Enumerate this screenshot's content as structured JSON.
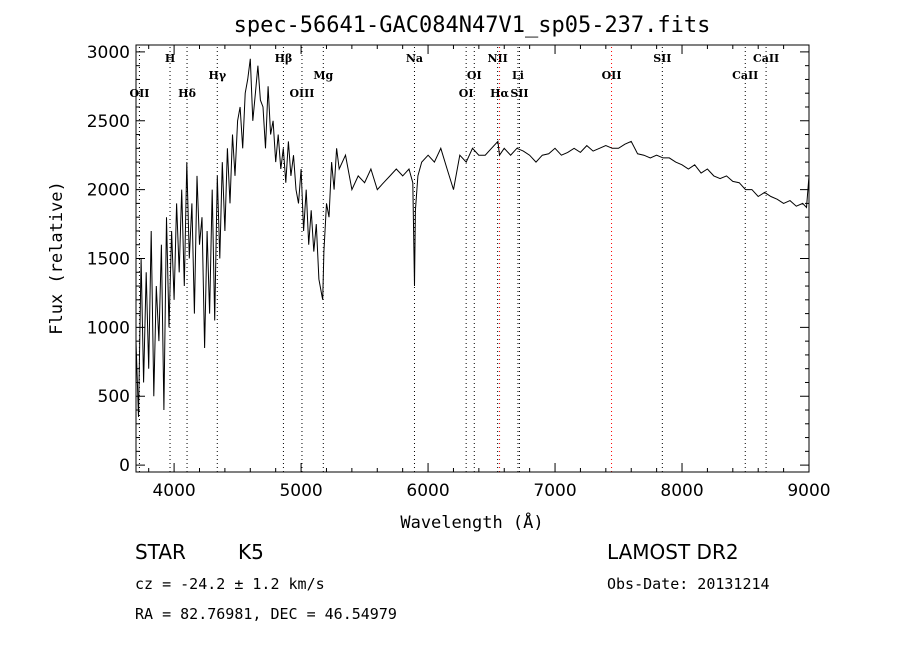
{
  "chart_data": {
    "type": "line",
    "title": "spec-56641-GAC084N47V1_sp05-237.fits",
    "xlabel": "Wavelength (Å)",
    "ylabel": "Flux (relative)",
    "xlim": [
      3700,
      9000
    ],
    "ylim": [
      -50,
      3050
    ],
    "xticks": [
      4000,
      5000,
      6000,
      7000,
      8000,
      9000
    ],
    "yticks": [
      0,
      500,
      1000,
      1500,
      2000,
      2500,
      3000
    ],
    "grid": false,
    "series": [
      {
        "x": [
          3700,
          3720,
          3740,
          3760,
          3780,
          3800,
          3820,
          3840,
          3860,
          3880,
          3900,
          3920,
          3940,
          3960,
          3980,
          4000,
          4020,
          4040,
          4060,
          4080,
          4100,
          4120,
          4140,
          4160,
          4180,
          4200,
          4220,
          4240,
          4260,
          4280,
          4300,
          4320,
          4340,
          4360,
          4380,
          4400,
          4420,
          4440,
          4460,
          4480,
          4500,
          4520,
          4540,
          4560,
          4580,
          4600,
          4620,
          4640,
          4660,
          4680,
          4700,
          4720,
          4740,
          4760,
          4780,
          4800,
          4820,
          4840,
          4860,
          4880,
          4900,
          4920,
          4940,
          4960,
          4980,
          5000,
          5020,
          5040,
          5060,
          5080,
          5100,
          5120,
          5140,
          5160,
          5170,
          5180,
          5200,
          5220,
          5240,
          5260,
          5280,
          5300,
          5350,
          5400,
          5450,
          5500,
          5550,
          5600,
          5650,
          5700,
          5750,
          5800,
          5850,
          5880,
          5893,
          5900,
          5920,
          5950,
          6000,
          6050,
          6100,
          6150,
          6200,
          6250,
          6300,
          6350,
          6400,
          6450,
          6500,
          6550,
          6563,
          6600,
          6650,
          6700,
          6750,
          6800,
          6850,
          6900,
          6950,
          7000,
          7050,
          7100,
          7150,
          7200,
          7250,
          7300,
          7350,
          7400,
          7450,
          7500,
          7550,
          7600,
          7650,
          7700,
          7750,
          7800,
          7850,
          7900,
          7950,
          8000,
          8050,
          8100,
          8150,
          8200,
          8250,
          8300,
          8350,
          8400,
          8450,
          8500,
          8550,
          8600,
          8650,
          8700,
          8750,
          8800,
          8850,
          8900,
          8950,
          8980,
          9000
        ],
        "y": [
          900,
          350,
          1500,
          600,
          1400,
          700,
          1700,
          500,
          1300,
          900,
          1600,
          400,
          1800,
          1000,
          1700,
          1200,
          1900,
          1400,
          2000,
          1300,
          2200,
          1500,
          1900,
          1100,
          2100,
          1600,
          1800,
          850,
          1700,
          1100,
          2000,
          1050,
          2100,
          1500,
          2200,
          1700,
          2300,
          1900,
          2400,
          2100,
          2500,
          2600,
          2300,
          2700,
          2800,
          2950,
          2500,
          2700,
          2900,
          2650,
          2600,
          2300,
          2750,
          2400,
          2500,
          2200,
          2400,
          2150,
          2300,
          2050,
          2350,
          2100,
          2250,
          2000,
          1900,
          2150,
          1700,
          2000,
          1600,
          1850,
          1550,
          1750,
          1350,
          1250,
          1200,
          1550,
          1900,
          1800,
          2200,
          2000,
          2300,
          2150,
          2250,
          2000,
          2100,
          2050,
          2150,
          2000,
          2050,
          2100,
          2150,
          2100,
          2150,
          2050,
          1300,
          1850,
          2100,
          2200,
          2250,
          2200,
          2300,
          2150,
          2000,
          2250,
          2200,
          2300,
          2250,
          2250,
          2300,
          2350,
          2250,
          2300,
          2250,
          2300,
          2280,
          2250,
          2200,
          2250,
          2260,
          2300,
          2250,
          2270,
          2300,
          2270,
          2320,
          2280,
          2300,
          2320,
          2300,
          2300,
          2330,
          2350,
          2260,
          2250,
          2230,
          2250,
          2230,
          2230,
          2200,
          2180,
          2150,
          2180,
          2120,
          2150,
          2100,
          2080,
          2100,
          2060,
          2050,
          2000,
          2000,
          1950,
          1980,
          1950,
          1930,
          1900,
          1920,
          1880,
          1900,
          1870,
          2100
        ]
      }
    ],
    "spectral_lines": [
      {
        "label": "OII",
        "x": 3727,
        "row": 3,
        "color": "#000000"
      },
      {
        "label": "H",
        "x": 3968,
        "row": 1,
        "color": "#000000"
      },
      {
        "label": "Hδ",
        "x": 4102,
        "row": 3,
        "color": "#000000"
      },
      {
        "label": "Hγ",
        "x": 4340,
        "row": 2,
        "color": "#000000"
      },
      {
        "label": "Hβ",
        "x": 4861,
        "row": 1,
        "color": "#000000"
      },
      {
        "label": "OIII",
        "x": 5007,
        "row": 3,
        "color": "#000000"
      },
      {
        "label": "Mg",
        "x": 5175,
        "row": 2,
        "color": "#000000"
      },
      {
        "label": "Na",
        "x": 5893,
        "row": 1,
        "color": "#000000"
      },
      {
        "label": "OI",
        "x": 6300,
        "row": 3,
        "color": "#000000"
      },
      {
        "label": "OI",
        "x": 6364,
        "row": 2,
        "color": "#000000"
      },
      {
        "label": "NII",
        "x": 6548,
        "row": 1,
        "color": "#000000"
      },
      {
        "label": "Hα",
        "x": 6563,
        "row": 3,
        "color": "#ff0000"
      },
      {
        "label": "Li",
        "x": 6708,
        "row": 2,
        "color": "#000000"
      },
      {
        "label": "SII",
        "x": 6720,
        "row": 3,
        "color": "#000000"
      },
      {
        "label": "OII",
        "x": 7445,
        "row": 2,
        "color": "#ff0000"
      },
      {
        "label": "SII",
        "x": 7845,
        "row": 1,
        "color": "#000000"
      },
      {
        "label": "CaII",
        "x": 8498,
        "row": 2,
        "color": "#000000"
      },
      {
        "label": "CaII",
        "x": 8662,
        "row": 1,
        "color": "#000000"
      }
    ]
  },
  "info": {
    "class": "STAR",
    "subclass": "K5",
    "survey": "LAMOST DR2",
    "cz": "cz = -24.2 ± 1.2 km/s",
    "obs_date": "Obs-Date: 20131214",
    "radec": "RA =  82.76981, DEC =  46.54979"
  }
}
